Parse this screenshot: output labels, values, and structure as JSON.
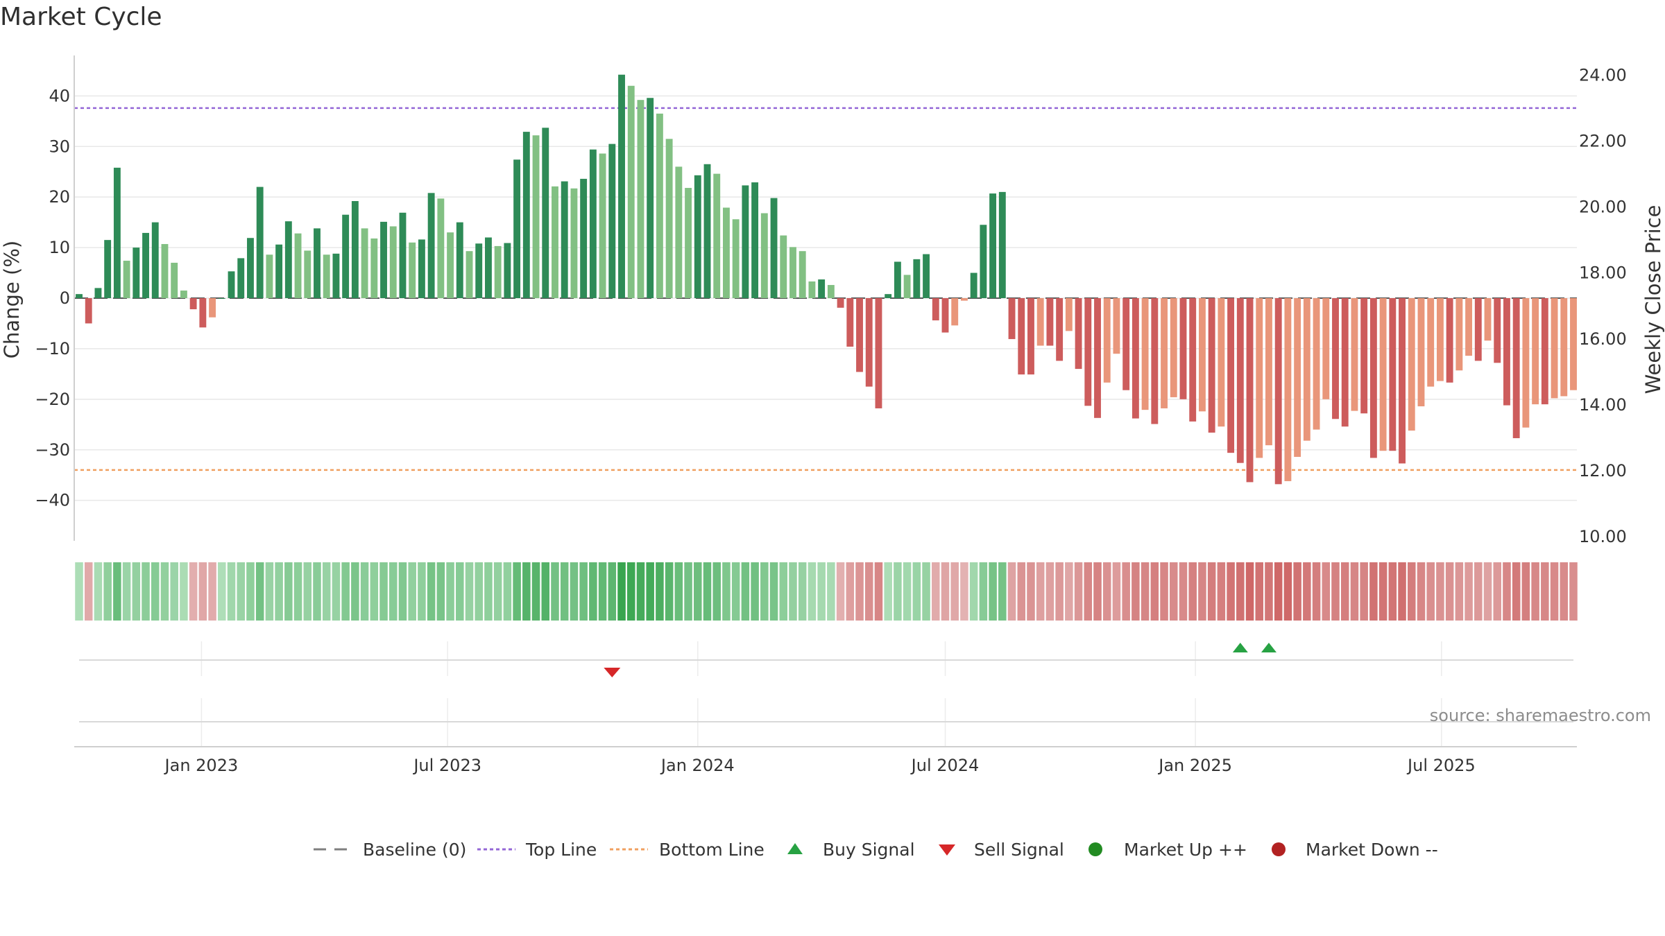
{
  "title": "Market Cycle",
  "source": "source: sharemaestro.com",
  "chart_data": {
    "type": "bar",
    "ylabel": "Change (%)",
    "y2label": "Weekly Close Price",
    "ylim": [
      -48,
      48
    ],
    "y2lim": [
      10,
      24.6
    ],
    "yticks": [
      40,
      30,
      20,
      10,
      0,
      -10,
      -20,
      -30,
      -40
    ],
    "ytick_labels": [
      "40",
      "30",
      "20",
      "10",
      "0",
      "−10",
      "−20",
      "−30",
      "−40"
    ],
    "y2ticks": [
      24,
      22,
      20,
      18,
      16,
      14,
      12,
      10
    ],
    "y2tick_labels": [
      "24.00",
      "22.00",
      "20.00",
      "18.00",
      "16.00",
      "14.00",
      "12.00",
      "10.00"
    ],
    "xticks": [
      "2023-01-01",
      "2023-07-01",
      "2024-01-01",
      "2024-07-01",
      "2025-01-01",
      "2025-07-01"
    ],
    "xtick_labels": [
      "Jan 2023",
      "Jul 2023",
      "Jan 2024",
      "Jul 2024",
      "Jan 2025",
      "Jul 2025"
    ],
    "start_week": "2022-10-03",
    "top_line": 37.6,
    "bottom_line": -34,
    "baseline": 0,
    "grid": true,
    "legend_position": "bottom-center",
    "values": [
      0.8,
      -5,
      2,
      11.5,
      25.8,
      7.4,
      10,
      12.9,
      15,
      10.7,
      7,
      1.5,
      -2.2,
      -5.8,
      -3.8,
      0,
      5.3,
      7.9,
      11.9,
      22,
      8.6,
      10.6,
      15.2,
      12.8,
      9.4,
      13.8,
      8.6,
      8.8,
      16.5,
      19.2,
      13.8,
      11.8,
      15.1,
      14.2,
      16.9,
      11,
      11.6,
      20.8,
      19.7,
      13,
      15,
      9.3,
      10.8,
      12,
      10.3,
      10.9,
      27.4,
      32.9,
      32.2,
      33.7,
      22.1,
      23.1,
      21.7,
      23.6,
      29.4,
      28.6,
      30.5,
      44.2,
      42,
      39.2,
      39.6,
      36.5,
      31.5,
      26,
      21.8,
      24.3,
      26.5,
      24.6,
      17.9,
      15.6,
      22.3,
      22.9,
      16.8,
      19.8,
      12.4,
      10.1,
      9.3,
      3.3,
      3.7,
      2.6,
      -1.9,
      -9.6,
      -14.6,
      -17.5,
      -21.8,
      0.8,
      7.2,
      4.6,
      7.7,
      8.7,
      -4.4,
      -6.8,
      -5.4,
      -0.5,
      5,
      14.5,
      20.7,
      21,
      -8.1,
      -15.1,
      -15.1,
      -9.4,
      -9.4,
      -12.4,
      -6.5,
      -14,
      -21.3,
      -23.7,
      -16.7,
      -11,
      -18.2,
      -23.8,
      -22.1,
      -24.9,
      -21.8,
      -19.6,
      -20,
      -24.4,
      -22.4,
      -26.6,
      -25.4,
      -30.6,
      -32.6,
      -36.4,
      -31.6,
      -29.1,
      -36.8,
      -36.2,
      -31.4,
      -28.2,
      -26,
      -20,
      -23.9,
      -25.4,
      -22.3,
      -22.8,
      -31.6,
      -30.2,
      -30.2,
      -32.7,
      -26.2,
      -21.4,
      -17.5,
      -16.4,
      -16.7,
      -14.3,
      -11.4,
      -12.4,
      -8.4,
      -12.8,
      -21.2,
      -27.7,
      -25.6,
      -21,
      -21,
      -19.8,
      -19.4,
      -18.2
    ],
    "series": [
      {
        "name": "Baseline (0)",
        "color": "#7f7f7f",
        "style": "dashed"
      },
      {
        "name": "Top Line",
        "color": "#9467d6",
        "style": "dotted"
      },
      {
        "name": "Bottom Line",
        "color": "#f0a060",
        "style": "dotted"
      },
      {
        "name": "Buy Signal",
        "color": "#27a243",
        "marker": "triangle-up",
        "dates": [
          "2025-02-03",
          "2025-02-24"
        ]
      },
      {
        "name": "Sell Signal",
        "color": "#d62728",
        "marker": "triangle-down",
        "dates": [
          "2023-10-30"
        ]
      },
      {
        "name": "Market Up ++",
        "color": "#228b22",
        "marker": "circle"
      },
      {
        "name": "Market Down --",
        "color": "#b22222",
        "marker": "circle"
      }
    ],
    "colors": {
      "up_strong": "#2e8b57",
      "up_weak": "#82c083",
      "down_strong": "#cd5c5c",
      "down_weak": "#e9967a"
    }
  }
}
